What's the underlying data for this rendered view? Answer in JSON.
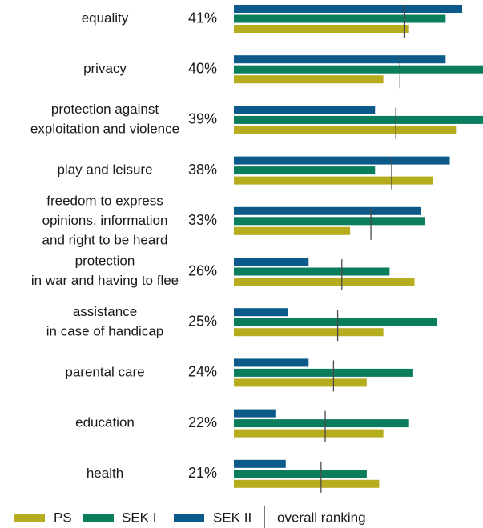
{
  "chart_data": {
    "type": "bar",
    "orientation": "horizontal",
    "xlim": [
      0,
      60
    ],
    "categories": [
      {
        "label_lines": [
          "equality"
        ],
        "overall": "41%"
      },
      {
        "label_lines": [
          "privacy"
        ],
        "overall": "40%"
      },
      {
        "label_lines": [
          "protection against",
          "exploitation and violence"
        ],
        "overall": "39%"
      },
      {
        "label_lines": [
          "play and leisure"
        ],
        "overall": "38%"
      },
      {
        "label_lines": [
          "freedom to express",
          "opinions, information",
          "and right to be heard"
        ],
        "overall": "33%"
      },
      {
        "label_lines": [
          "protection",
          "in war and having to flee"
        ],
        "overall": "26%"
      },
      {
        "label_lines": [
          "assistance",
          "in case of handicap"
        ],
        "overall": "25%"
      },
      {
        "label_lines": [
          "parental care"
        ],
        "overall": "24%"
      },
      {
        "label_lines": [
          "education"
        ],
        "overall": "22%"
      },
      {
        "label_lines": [
          "health"
        ],
        "overall": "21%"
      }
    ],
    "overall_values": [
      41,
      40,
      39,
      38,
      33,
      26,
      25,
      24,
      22,
      21
    ],
    "series": [
      {
        "name": "SEK II",
        "color": "#0b5a8a",
        "values": [
          55,
          51,
          34,
          52,
          45,
          18,
          13,
          18,
          10,
          12.5
        ]
      },
      {
        "name": "SEK I",
        "color": "#0a7e5c",
        "values": [
          51,
          60,
          60,
          34,
          46,
          37.5,
          49,
          43,
          42,
          32
        ]
      },
      {
        "name": "PS",
        "color": "#b5ad1d",
        "values": [
          42,
          36,
          53.5,
          48,
          28,
          43.5,
          36,
          32,
          36,
          35
        ]
      }
    ],
    "legend": {
      "position": "bottom",
      "items": [
        {
          "label": "PS",
          "color": "#b5ad1d",
          "kind": "swatch"
        },
        {
          "label": "SEK I",
          "color": "#0a7e5c",
          "kind": "swatch"
        },
        {
          "label": "SEK II",
          "color": "#0b5a8a",
          "kind": "swatch"
        },
        {
          "label": "overall ranking",
          "color": "#333333",
          "kind": "line"
        }
      ]
    }
  }
}
